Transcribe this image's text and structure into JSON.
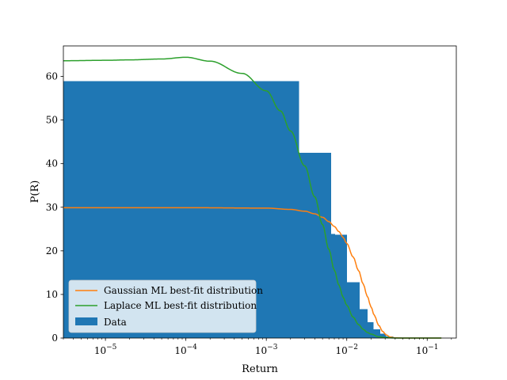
{
  "chart_data": {
    "type": "bar",
    "xscale": "log",
    "xlabel": "Return",
    "ylabel": "P(R)",
    "xlim": [
      3e-06,
      0.23
    ],
    "ylim": [
      0,
      67
    ],
    "grid": false,
    "legend_position": "lower-left",
    "x_ticks": [
      {
        "base": "10",
        "exp": "−5",
        "value": 1e-05
      },
      {
        "base": "10",
        "exp": "−4",
        "value": 0.0001
      },
      {
        "base": "10",
        "exp": "−3",
        "value": 0.001
      },
      {
        "base": "10",
        "exp": "−2",
        "value": 0.01
      },
      {
        "base": "10",
        "exp": "−1",
        "value": 0.1
      }
    ],
    "y_ticks": [
      0,
      10,
      20,
      30,
      40,
      50,
      60
    ],
    "histogram": {
      "name": "Data",
      "color": "#1f77b4",
      "bins": [
        {
          "x0": 3e-06,
          "x1": 0.00255,
          "value": 58.9
        },
        {
          "x0": 0.00255,
          "x1": 0.0064,
          "value": 42.5
        },
        {
          "x0": 0.0064,
          "x1": 0.0072,
          "value": 23.9
        },
        {
          "x0": 0.0072,
          "x1": 0.0101,
          "value": 23.7
        },
        {
          "x0": 0.0101,
          "x1": 0.0144,
          "value": 12.8
        },
        {
          "x0": 0.0144,
          "x1": 0.0182,
          "value": 6.6
        },
        {
          "x0": 0.0182,
          "x1": 0.0215,
          "value": 3.6
        },
        {
          "x0": 0.0215,
          "x1": 0.026,
          "value": 2.0
        },
        {
          "x0": 0.026,
          "x1": 0.031,
          "value": 1.0
        },
        {
          "x0": 0.031,
          "x1": 0.038,
          "value": 0.4
        }
      ]
    },
    "series": [
      {
        "name": "Gaussian ML best-fit distribution",
        "color": "#ff7f0e",
        "x": [
          3e-06,
          1e-05,
          0.0001,
          0.001,
          0.002,
          0.003,
          0.004,
          0.005,
          0.006,
          0.007,
          0.008,
          0.009,
          0.01,
          0.012,
          0.014,
          0.016,
          0.018,
          0.02,
          0.022,
          0.025,
          0.028,
          0.031,
          0.035,
          0.04,
          0.05,
          0.06,
          0.08,
          0.1,
          0.15
        ],
        "y": [
          29.9,
          29.9,
          29.9,
          29.8,
          29.5,
          29.1,
          28.5,
          27.7,
          26.7,
          25.6,
          24.4,
          23.1,
          21.7,
          18.6,
          15.5,
          12.4,
          9.6,
          7.2,
          5.2,
          2.9,
          1.5,
          0.7,
          0.2,
          0.05,
          0,
          0,
          0,
          0,
          0
        ]
      },
      {
        "name": "Laplace ML best-fit distribution",
        "color": "#2ca02c",
        "x": [
          3e-06,
          1e-05,
          2e-05,
          5e-05,
          0.0001,
          0.0002,
          0.0005,
          0.001,
          0.0015,
          0.002,
          0.003,
          0.004,
          0.005,
          0.006,
          0.007,
          0.008,
          0.009,
          0.01,
          0.012,
          0.014,
          0.016,
          0.018,
          0.02,
          0.025,
          0.03,
          0.04,
          0.05,
          0.07,
          0.1,
          0.15
        ],
        "y": [
          63.6,
          63.7,
          63.8,
          64.0,
          64.4,
          63.5,
          60.7,
          56.7,
          52.1,
          47.5,
          39.5,
          32.4,
          26.0,
          20.3,
          15.6,
          12.1,
          9.4,
          7.5,
          4.8,
          3.1,
          2.0,
          1.3,
          0.9,
          0.3,
          0.1,
          0.01,
          0,
          0,
          0,
          0
        ]
      }
    ],
    "legend": [
      {
        "label": "Gaussian ML best-fit distribution",
        "kind": "line",
        "color": "#ff7f0e"
      },
      {
        "label": "Laplace ML best-fit distribution",
        "kind": "line",
        "color": "#2ca02c"
      },
      {
        "label": "Data",
        "kind": "patch",
        "color": "#1f77b4"
      }
    ]
  }
}
